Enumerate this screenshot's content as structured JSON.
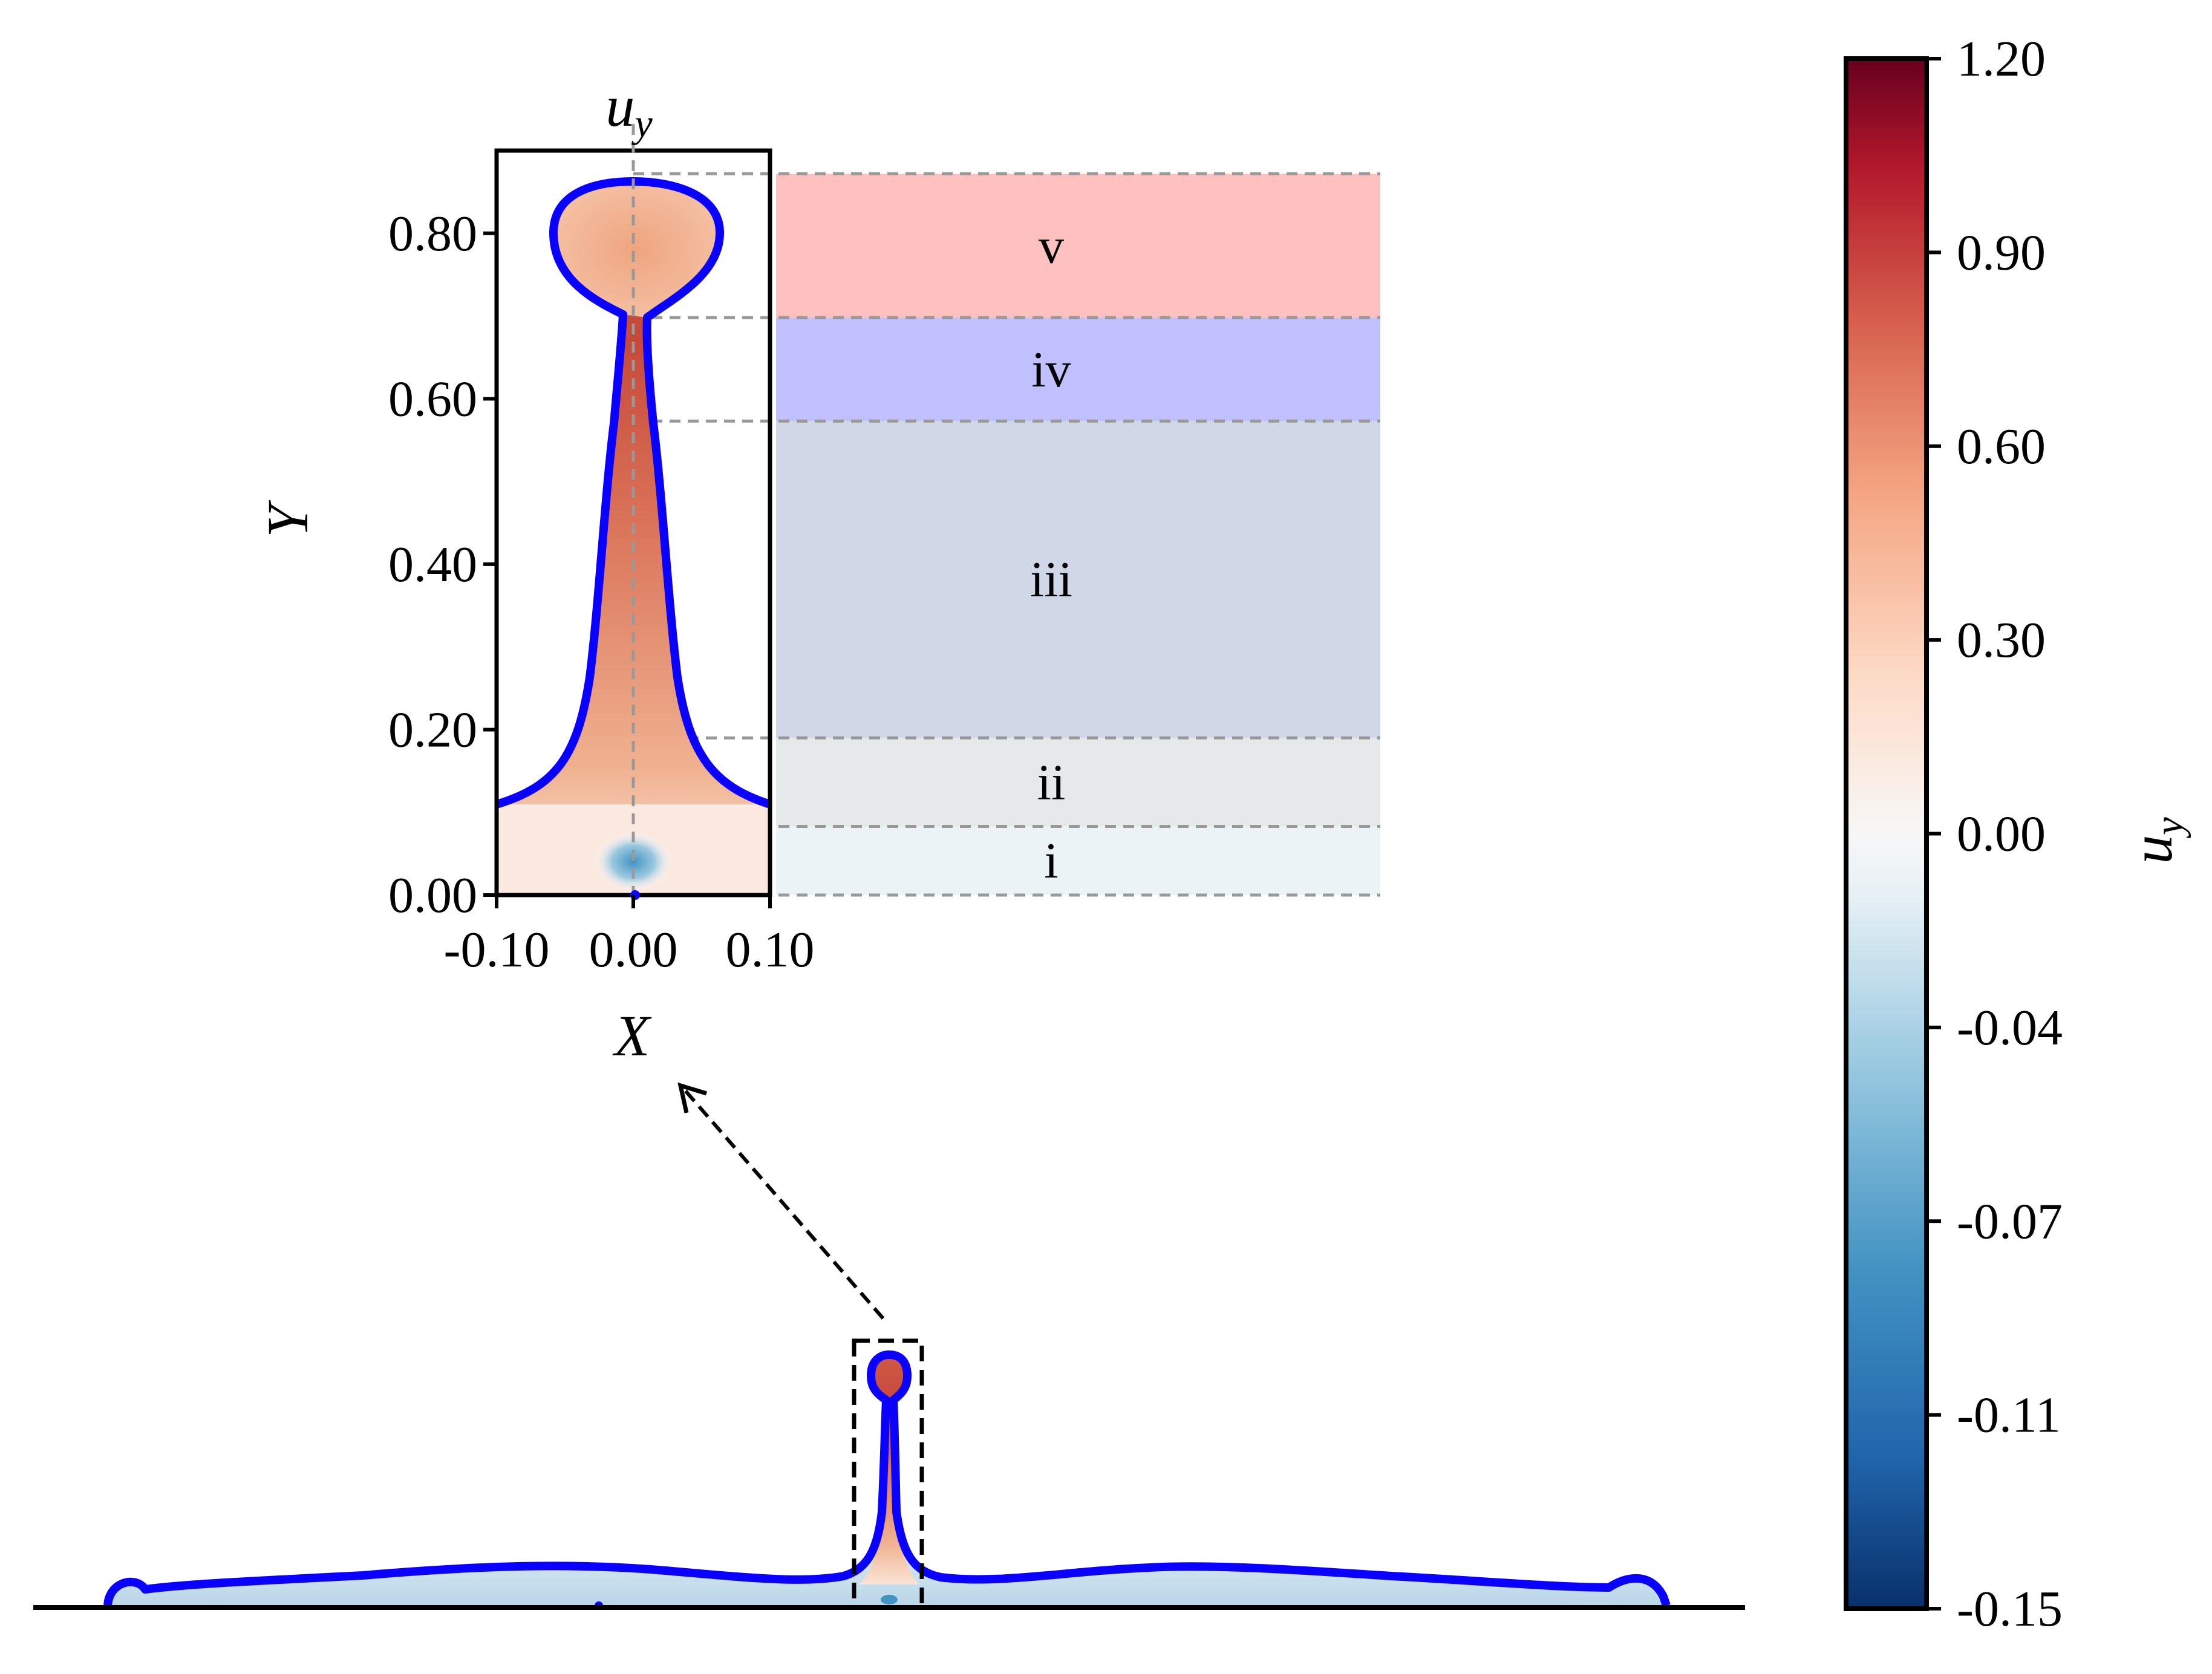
{
  "chart_data": {
    "type": "heatmap",
    "title": "u_y",
    "title_main": "u",
    "title_sub": "y",
    "xlabel": "X",
    "ylabel": "Y",
    "xlim": [
      -0.1,
      0.1
    ],
    "ylim": [
      0.0,
      0.9
    ],
    "x_ticks": [
      -0.1,
      0.0,
      0.1
    ],
    "x_tick_labels": [
      "-0.10",
      "0.00",
      "0.10"
    ],
    "y_ticks": [
      0.0,
      0.2,
      0.4,
      0.6,
      0.8
    ],
    "y_tick_labels": [
      "0.00",
      "0.20",
      "0.40",
      "0.60",
      "0.80"
    ],
    "regions": [
      {
        "label": "i",
        "y_range": [
          0.0,
          0.083
        ],
        "color": "#dbe9ee"
      },
      {
        "label": "ii",
        "y_range": [
          0.083,
          0.19
        ],
        "color": "#d0d7d9"
      },
      {
        "label": "iii",
        "y_range": [
          0.19,
          0.573
        ],
        "color": "#aab6d1"
      },
      {
        "label": "iv",
        "y_range": [
          0.573,
          0.698
        ],
        "color": "#8c8cff"
      },
      {
        "label": "v",
        "y_range": [
          0.698,
          0.872
        ],
        "color": "#ff8c8c"
      }
    ],
    "interface_color": "#0a00ff",
    "colorbar": {
      "label": "u_y",
      "label_main": "u",
      "label_sub": "y",
      "tick_labels": [
        "-0.15",
        "-0.11",
        "-0.07",
        "-0.04",
        "0.00",
        "0.30",
        "0.60",
        "0.90",
        "1.20"
      ],
      "colors": [
        "#08306b",
        "#2166ac",
        "#4393c3",
        "#92c5de",
        "#d1e5f0",
        "#f7f7f7",
        "#fddbc7",
        "#f4a582",
        "#d6604d",
        "#b2182b",
        "#67001f"
      ]
    }
  }
}
